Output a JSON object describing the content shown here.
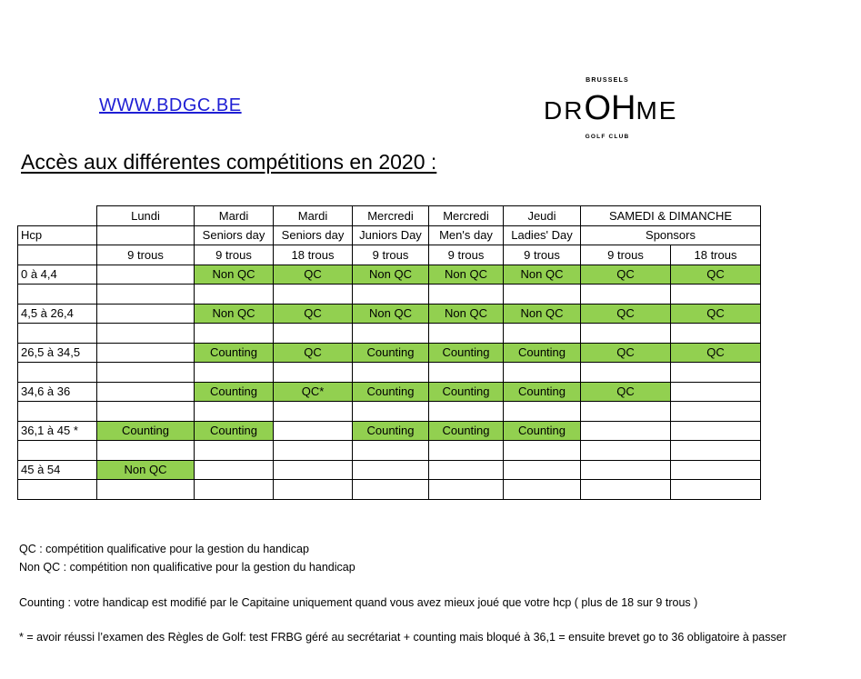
{
  "header": {
    "website": "WWW.BDGC.BE",
    "logo": {
      "top": "BRUSSELS",
      "left": "DR",
      "mid": "OH",
      "right": "ME",
      "bottom": "GOLF CLUB"
    },
    "title": "Accès aux différentes compétitions en 2020 :"
  },
  "table": {
    "days": [
      "Lundi",
      "Mardi",
      "Mardi",
      "Mercredi",
      "Mercredi",
      "Jeudi",
      "SAMEDI & DIMANCHE"
    ],
    "hcp_label": "Hcp",
    "events": [
      "",
      "Seniors day",
      "Seniors day",
      "Juniors Day",
      "Men's day",
      "Ladies' Day",
      "Sponsors"
    ],
    "holes": [
      "9 trous",
      "9 trous",
      "18 trous",
      "9 trous",
      "9 trous",
      "9 trous",
      "9 trous",
      "18 trous"
    ],
    "rows": [
      {
        "range": "0 à 4,4",
        "cells": [
          "",
          "Non QC",
          "QC",
          "Non QC",
          "Non QC",
          "Non QC",
          "QC",
          "QC"
        ]
      },
      {
        "range": "4,5 à 26,4",
        "cells": [
          "",
          "Non QC",
          "QC",
          "Non QC",
          "Non QC",
          "Non QC",
          "QC",
          "QC"
        ]
      },
      {
        "range": "26,5 à 34,5",
        "cells": [
          "",
          "Counting",
          "QC",
          "Counting",
          "Counting",
          "Counting",
          "QC",
          "QC"
        ]
      },
      {
        "range": "34,6 à 36",
        "cells": [
          "",
          "Counting",
          "QC*",
          "Counting",
          "Counting",
          "Counting",
          "QC",
          ""
        ]
      },
      {
        "range": "36,1 à 45 *",
        "cells": [
          "Counting",
          "Counting",
          "",
          "Counting",
          "Counting",
          "Counting",
          "",
          ""
        ]
      },
      {
        "range": "45 à 54",
        "cells": [
          "Non QC",
          "",
          "",
          "",
          "",
          "",
          "",
          ""
        ]
      }
    ]
  },
  "notes": {
    "qc": "QC : compétition qualificative pour la gestion du handicap",
    "non_qc": "Non QC : compétition non qualificative pour la gestion du handicap",
    "counting": "Counting : votre handicap est modifié par le Capitaine uniquement quand vous avez mieux joué que votre hcp ( plus de 18 sur 9 trous )",
    "star": "* = avoir réussi l’examen des Règles de Golf: test FRBG géré au secrétariat + counting mais bloqué à 36,1 = ensuite brevet go to 36 obligatoire à passer"
  },
  "colors": {
    "green": "#92d050",
    "link": "#1f1fd4"
  }
}
